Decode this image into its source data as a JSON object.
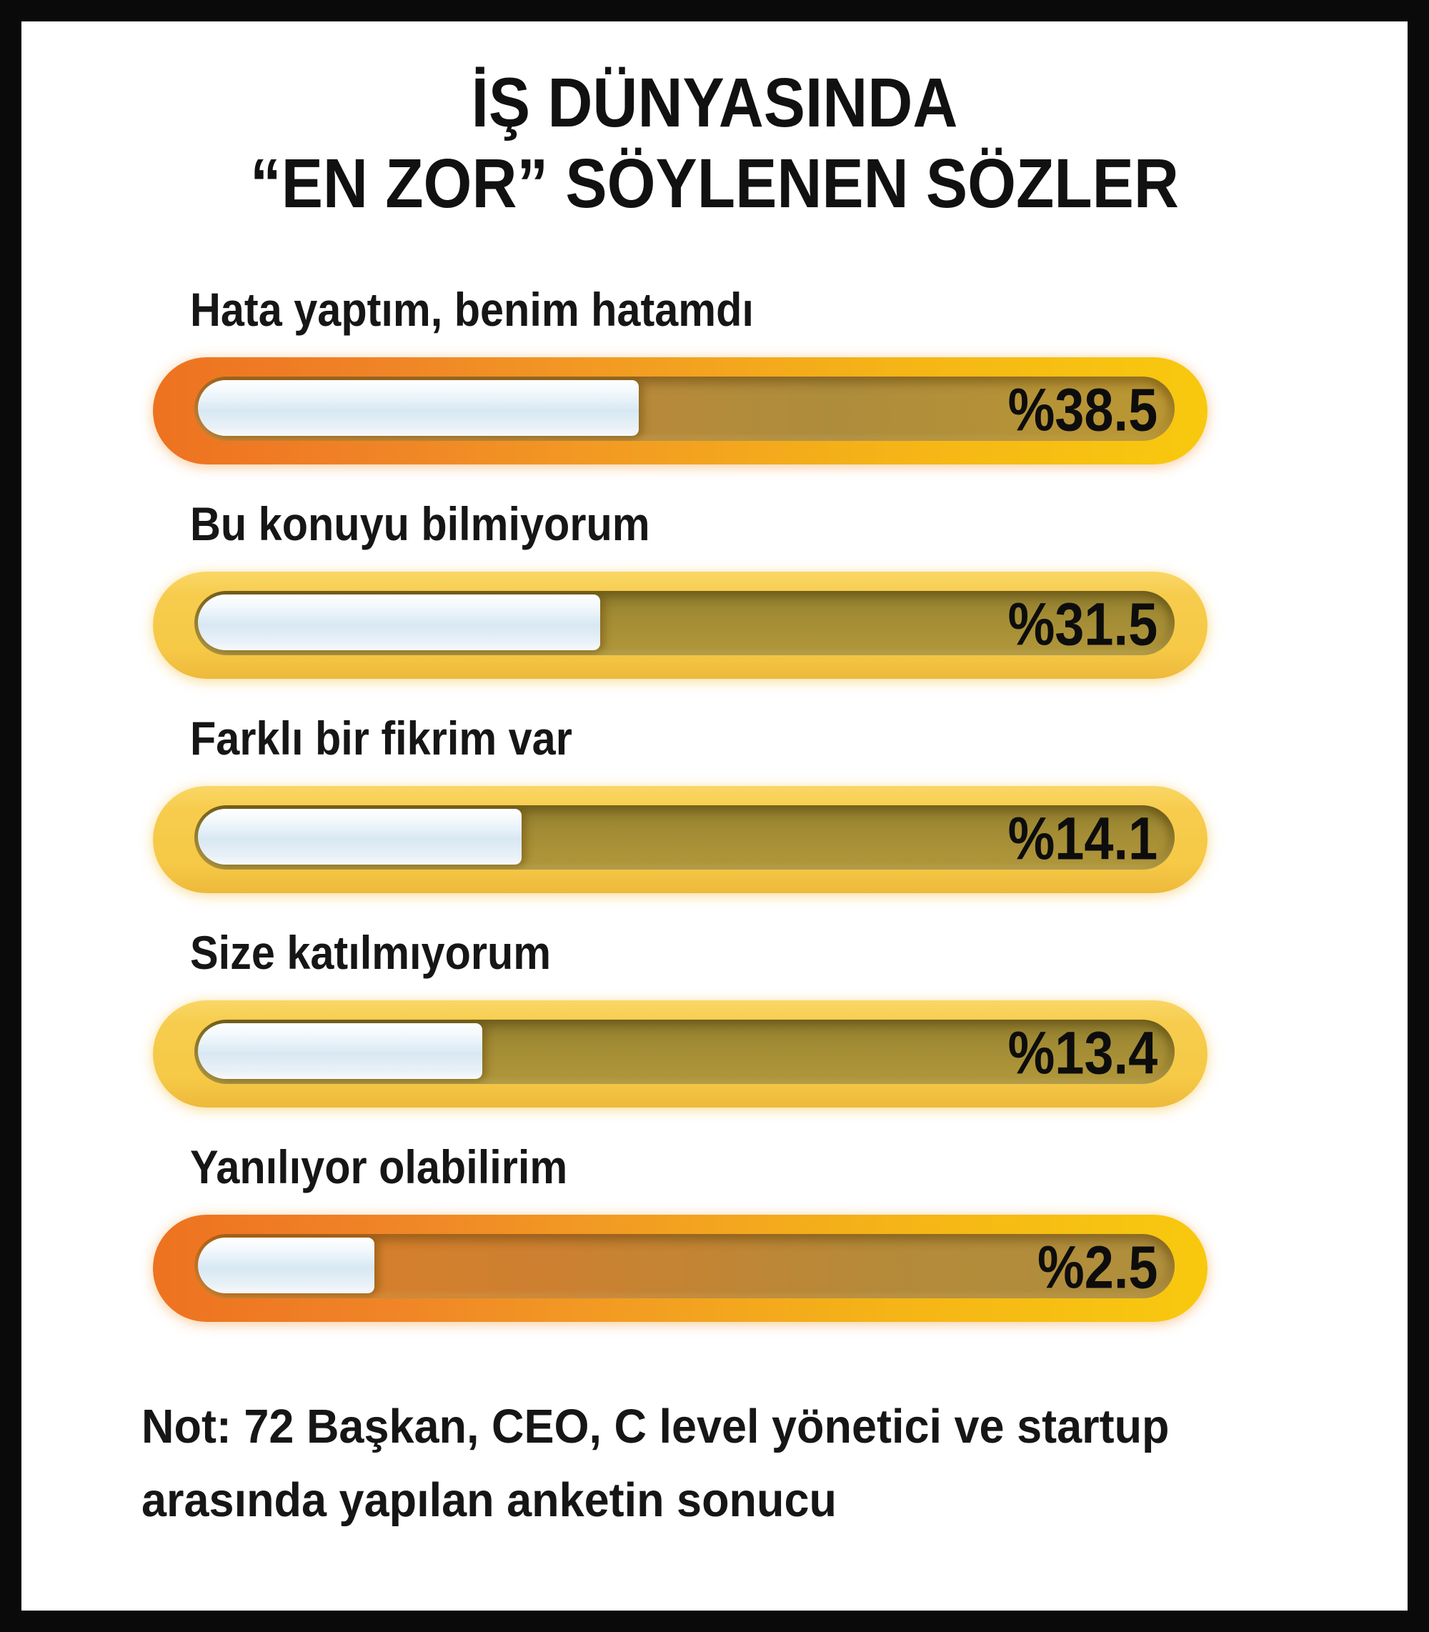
{
  "title": {
    "line1": "İŞ DÜNYASINDA",
    "line2": "“EN ZOR” SÖYLENEN SÖZLER"
  },
  "note": {
    "line1": "Not: 72 Başkan, CEO, C level yönetici ve startup",
    "line2": "arasında yapılan anketin sonucu"
  },
  "chart_data": {
    "type": "bar",
    "orientation": "horizontal",
    "title": "İŞ DÜNYASINDA “EN ZOR” SÖYLENEN SÖZLER",
    "unit": "percent",
    "categories": [
      "Hata yaptım, benim hatamdı",
      "Bu konuyu bilmiyorum",
      "Farklı bir fikrim var",
      "Size katılmıyorum",
      "Yanılıyor olabilirim"
    ],
    "values": [
      38.5,
      31.5,
      14.1,
      13.4,
      2.5
    ],
    "value_labels": [
      "%38.5",
      "%31.5",
      "%14.1",
      "%13.4",
      "%2.5"
    ],
    "visual_fill_fractions": [
      0.45,
      0.41,
      0.33,
      0.29,
      0.18
    ],
    "xlim": [
      0,
      100
    ],
    "legend": false,
    "grid": false,
    "note": "Not: 72 Başkan, CEO, C level yönetici ve startup arasında yapılan anketin sonucu"
  },
  "colors": {
    "frame_border": "#0a0a0a",
    "background": "#ffffff",
    "text": "#111111",
    "bar_hot_left": "#ee7220",
    "bar_hot_right": "#f8c90e",
    "bar_gold": "#f6c946",
    "track_olive": "#a08a33",
    "fill_white_blue": "#d8e8f3",
    "value_text": "#0d0d0d"
  }
}
